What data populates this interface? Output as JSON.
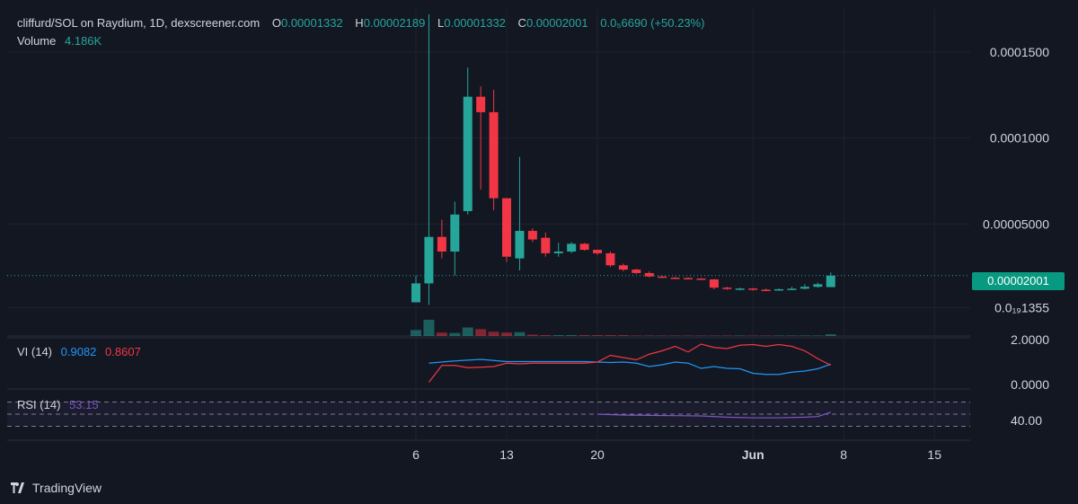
{
  "header": {
    "pair": "cliffurd/SOL on Raydium, 1D, dexscreener.com",
    "o_label": "O",
    "o_value": "0.00001332",
    "h_label": "H",
    "h_value": "0.00002189",
    "l_label": "L",
    "l_value": "0.00001332",
    "c_label": "C",
    "c_value": "0.00002001",
    "change_abs": "0.0₅6690",
    "change_pct": "(+50.23%)"
  },
  "volume": {
    "label": "Volume",
    "value": "4.186K"
  },
  "vi": {
    "label": "VI (14)",
    "plus_value": "0.9082",
    "minus_value": "0.8607"
  },
  "rsi": {
    "label": "RSI (14)",
    "value": "53.15"
  },
  "last_price_label": "0.00002001",
  "branding": {
    "text": "TradingView",
    "icon": "tradingview-logo-icon"
  },
  "colors": {
    "background": "#131722",
    "up": "#26a69a",
    "down": "#f23645",
    "vi_plus": "#2962ff",
    "vi_minus": "#f23645",
    "rsi": "#7e57c2",
    "text": "#d1d4dc",
    "muted": "#b2b5be"
  },
  "chart_data": [
    {
      "type": "candlestick",
      "title": "cliffurd/SOL on Raydium, 1D, dexscreener.com",
      "y_ticks": [
        "0.0001500",
        "0.0001000",
        "0.00005000",
        "0.0₁₉1355"
      ],
      "y_tick_values": [
        0.00015,
        0.0001,
        5e-05,
        1.355e-06
      ],
      "x_ticks": [
        "6",
        "13",
        "20",
        "Jun",
        "8",
        "15"
      ],
      "x_tick_days": [
        6,
        13,
        20,
        32,
        39,
        46
      ],
      "ylim": [
        -1.51e-05,
        0.000175
      ],
      "candles": [
        {
          "day": 6.0,
          "o": 4.5e-06,
          "h": 2e-05,
          "l": 4.5e-06,
          "c": 1.55e-05
        },
        {
          "day": 7.0,
          "o": 1.55e-05,
          "h": 0.000172,
          "l": 3e-06,
          "c": 4.25e-05
        },
        {
          "day": 8.0,
          "o": 4.25e-05,
          "h": 5.25e-05,
          "l": 3e-05,
          "c": 3.4e-05
        },
        {
          "day": 9.0,
          "o": 3.4e-05,
          "h": 6.3e-05,
          "l": 2e-05,
          "c": 5.55e-05
        },
        {
          "day": 10.0,
          "o": 5.75e-05,
          "h": 0.000141,
          "l": 5.55e-05,
          "c": 0.000124
        },
        {
          "day": 11.0,
          "o": 0.000124,
          "h": 0.00013,
          "l": 7e-05,
          "c": 0.000115
        },
        {
          "day": 12.0,
          "o": 0.000115,
          "h": 0.000128,
          "l": 5.8e-05,
          "c": 6.5e-05
        },
        {
          "day": 13.0,
          "o": 6.5e-05,
          "h": 6.5e-05,
          "l": 2.8e-05,
          "c": 3.1e-05
        },
        {
          "day": 14.0,
          "o": 3e-05,
          "h": 8.9e-05,
          "l": 2.3e-05,
          "c": 4.6e-05
        },
        {
          "day": 15.0,
          "o": 4.6e-05,
          "h": 4.75e-05,
          "l": 3.95e-05,
          "c": 4.1e-05
        },
        {
          "day": 16.0,
          "o": 4.2e-05,
          "h": 4.5e-05,
          "l": 3.1e-05,
          "c": 3.3e-05
        },
        {
          "day": 17.0,
          "o": 3.3e-05,
          "h": 3.9e-05,
          "l": 3.1e-05,
          "c": 3.4e-05
        },
        {
          "day": 18.0,
          "o": 3.4e-05,
          "h": 3.95e-05,
          "l": 3.3e-05,
          "c": 3.85e-05
        },
        {
          "day": 19.0,
          "o": 3.85e-05,
          "h": 3.9e-05,
          "l": 3.45e-05,
          "c": 3.5e-05
        },
        {
          "day": 20.0,
          "o": 3.5e-05,
          "h": 3.5e-05,
          "l": 3.2e-05,
          "c": 3.3e-05
        },
        {
          "day": 21.0,
          "o": 3.3e-05,
          "h": 3.4e-05,
          "l": 2.5e-05,
          "c": 2.6e-05
        },
        {
          "day": 22.0,
          "o": 2.6e-05,
          "h": 2.7e-05,
          "l": 2.25e-05,
          "c": 2.35e-05
        },
        {
          "day": 23.0,
          "o": 2.35e-05,
          "h": 2.4e-05,
          "l": 2.1e-05,
          "c": 2.15e-05
        },
        {
          "day": 24.0,
          "o": 2.15e-05,
          "h": 2.25e-05,
          "l": 1.9e-05,
          "c": 1.95e-05
        },
        {
          "day": 25.0,
          "o": 1.95e-05,
          "h": 1.98e-05,
          "l": 1.85e-05,
          "c": 1.88e-05
        },
        {
          "day": 26.0,
          "o": 1.88e-05,
          "h": 1.92e-05,
          "l": 1.83e-05,
          "c": 1.86e-05
        },
        {
          "day": 27.0,
          "o": 1.86e-05,
          "h": 1.9e-05,
          "l": 1.8e-05,
          "c": 1.83e-05
        },
        {
          "day": 28.0,
          "o": 1.83e-05,
          "h": 1.86e-05,
          "l": 1.75e-05,
          "c": 1.78e-05
        },
        {
          "day": 29.0,
          "o": 1.78e-05,
          "h": 1.8e-05,
          "l": 1.2e-05,
          "c": 1.3e-05
        },
        {
          "day": 30.0,
          "o": 1.3e-05,
          "h": 1.35e-05,
          "l": 1.18e-05,
          "c": 1.22e-05
        },
        {
          "day": 31.0,
          "o": 1.22e-05,
          "h": 1.3e-05,
          "l": 1.15e-05,
          "c": 1.25e-05
        },
        {
          "day": 32.0,
          "o": 1.25e-05,
          "h": 1.28e-05,
          "l": 1.13e-05,
          "c": 1.18e-05
        },
        {
          "day": 33.0,
          "o": 1.18e-05,
          "h": 1.25e-05,
          "l": 1.12e-05,
          "c": 1.16e-05
        },
        {
          "day": 34.0,
          "o": 1.16e-05,
          "h": 1.25e-05,
          "l": 1.12e-05,
          "c": 1.21e-05
        },
        {
          "day": 35.0,
          "o": 1.21e-05,
          "h": 1.35e-05,
          "l": 1.18e-05,
          "c": 1.24e-05
        },
        {
          "day": 36.0,
          "o": 1.24e-05,
          "h": 1.5e-05,
          "l": 1.2e-05,
          "c": 1.35e-05
        },
        {
          "day": 37.0,
          "o": 1.35e-05,
          "h": 1.6e-05,
          "l": 1.3e-05,
          "c": 1.5e-05
        },
        {
          "day": 38.0,
          "o": 1.332e-05,
          "h": 2.189e-05,
          "l": 1.332e-05,
          "c": 2.001e-05
        }
      ],
      "last_price": 2.001e-05
    },
    {
      "type": "bar",
      "title": "Volume",
      "days": [
        6,
        7,
        8,
        9,
        10,
        11,
        12,
        13,
        14,
        15,
        16,
        17,
        18,
        19,
        20,
        21,
        22,
        23,
        24,
        25,
        26,
        27,
        28,
        29,
        30,
        31,
        32,
        33,
        34,
        35,
        36,
        37,
        38
      ],
      "directions": [
        "up",
        "up",
        "down",
        "up",
        "up",
        "down",
        "down",
        "down",
        "up",
        "down",
        "down",
        "up",
        "up",
        "down",
        "down",
        "down",
        "down",
        "down",
        "down",
        "down",
        "down",
        "down",
        "down",
        "down",
        "down",
        "up",
        "down",
        "down",
        "up",
        "up",
        "up",
        "up",
        "up"
      ],
      "values": [
        14,
        38,
        8,
        7,
        20,
        16,
        10,
        8,
        9,
        3,
        2,
        2,
        2,
        2,
        2,
        2,
        2,
        1,
        1,
        1,
        1,
        1,
        1,
        1,
        1,
        1,
        1,
        1,
        1,
        1,
        1,
        1,
        4
      ],
      "ylim": [
        0,
        40
      ]
    },
    {
      "type": "line",
      "title": "VI (14)",
      "y_ticks": [
        "2.0000",
        "0.0000"
      ],
      "ylim": [
        0,
        2
      ],
      "series": [
        {
          "name": "VI+",
          "days": [
            7,
            9,
            11,
            13,
            15,
            17,
            19,
            21,
            22,
            23,
            24,
            25,
            26,
            27,
            28,
            29,
            30,
            31,
            32,
            33,
            34,
            35,
            36,
            37,
            38
          ],
          "values": [
            0.95,
            1.05,
            1.12,
            1.02,
            1.02,
            1.02,
            1.02,
            0.98,
            1.0,
            0.95,
            0.8,
            0.88,
            1.0,
            0.95,
            0.72,
            0.8,
            0.72,
            0.7,
            0.5,
            0.45,
            0.45,
            0.55,
            0.6,
            0.7,
            0.9082
          ]
        },
        {
          "name": "VI-",
          "days": [
            7,
            8,
            9,
            10,
            11,
            12,
            13,
            14,
            15,
            16,
            17,
            18,
            19,
            20,
            21,
            22,
            23,
            24,
            25,
            26,
            27,
            28,
            29,
            30,
            31,
            32,
            33,
            34,
            35,
            36,
            37,
            38
          ],
          "values": [
            0.1,
            0.85,
            0.85,
            0.75,
            0.77,
            0.8,
            0.95,
            0.92,
            0.95,
            0.95,
            0.95,
            0.95,
            0.95,
            1.0,
            1.3,
            1.2,
            1.1,
            1.35,
            1.5,
            1.7,
            1.45,
            1.8,
            1.65,
            1.6,
            1.75,
            1.78,
            1.7,
            1.78,
            1.7,
            1.5,
            1.15,
            0.8607
          ]
        }
      ]
    },
    {
      "type": "line",
      "title": "RSI (14)",
      "y_ticks": [
        "40.00"
      ],
      "ylim": [
        16,
        84
      ],
      "bands": [
        70,
        50,
        30
      ],
      "series": [
        {
          "name": "RSI",
          "days": [
            20,
            22,
            24,
            26,
            28,
            30,
            32,
            34,
            36,
            37,
            38
          ],
          "values": [
            50,
            48.5,
            48,
            47.5,
            47,
            45,
            44,
            44,
            45,
            46,
            53.15
          ]
        }
      ]
    }
  ]
}
